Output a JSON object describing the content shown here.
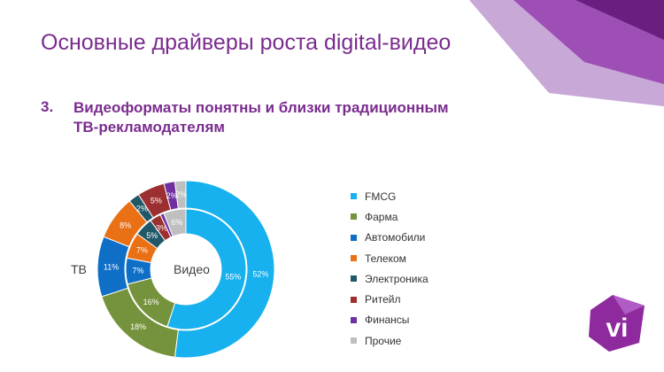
{
  "slide": {
    "title": "Основные драйверы роста digital-видео",
    "section_number": "3.",
    "section_heading_lines": [
      "Видеоформаты понятны и близки традиционным",
      "ТВ-рекламодателям"
    ]
  },
  "logo_text": "vi",
  "colors": {
    "accent": "#7a2c8e",
    "logo": "#8e2a9d"
  },
  "chart_data": {
    "type": "donut",
    "categories": [
      "FMCG",
      "Фарма",
      "Автомобили",
      "Телеком",
      "Электроника",
      "Ритейл",
      "Финансы",
      "Прочие"
    ],
    "colors": [
      "#16b1ee",
      "#75923c",
      "#0f6fc6",
      "#ea7016",
      "#215867",
      "#9c2f2f",
      "#7030a0",
      "#bfbfbf"
    ],
    "series": [
      {
        "name": "ТВ",
        "ring": "outer",
        "values": [
          52,
          18,
          11,
          8,
          2,
          5,
          2,
          2
        ]
      },
      {
        "name": "Видео",
        "ring": "inner",
        "values": [
          55,
          16,
          7,
          7,
          5,
          3,
          1,
          6
        ]
      }
    ],
    "data_labels": {
      "outer": [
        "52%",
        "18%",
        "11%",
        "8%",
        "2%",
        "5%",
        "2%",
        "2%"
      ],
      "inner": [
        "55%",
        "16%",
        "7%",
        "7%",
        "5%",
        "3%",
        "",
        "6%"
      ]
    },
    "legend": "right"
  }
}
